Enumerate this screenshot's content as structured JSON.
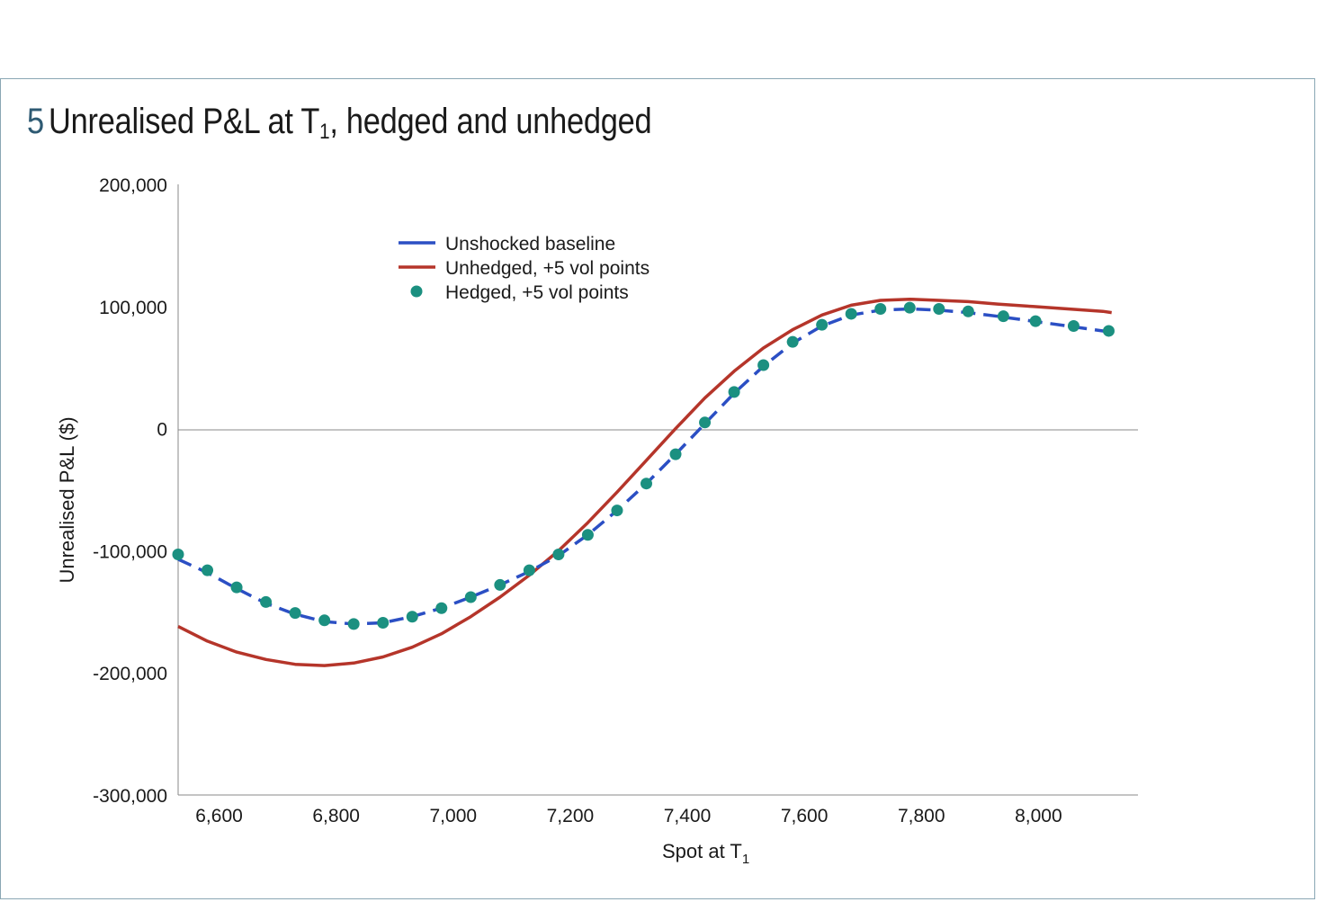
{
  "figure": {
    "number": "5",
    "title_main": "Unrealised P&L at T",
    "title_sub": "1",
    "title_rest": ", hedged and unhedged"
  },
  "chart_data": {
    "type": "line",
    "xlabel": "Spot at T",
    "xlabel_sub": "1",
    "ylabel": "Unrealised P&L ($)",
    "xlim": [
      6530,
      8170
    ],
    "ylim": [
      -300000,
      200000
    ],
    "x_ticks": [
      6600,
      6800,
      7000,
      7200,
      7400,
      7600,
      7800,
      8000
    ],
    "x_tick_labels": [
      "6,600",
      "6,800",
      "7,000",
      "7,200",
      "7,400",
      "7,600",
      "7,800",
      "8,000"
    ],
    "y_ticks": [
      200000,
      100000,
      0,
      -100000,
      -200000,
      -300000
    ],
    "y_tick_labels": [
      "200,000",
      "100,000",
      "0",
      "-100,000",
      "-200,000",
      "-300,000"
    ],
    "grid": false,
    "legend_position": "top-left",
    "x": [
      6530,
      6580,
      6630,
      6680,
      6730,
      6780,
      6830,
      6880,
      6930,
      6980,
      7030,
      7080,
      7130,
      7180,
      7230,
      7280,
      7330,
      7380,
      7430,
      7480,
      7530,
      7580,
      7630,
      7680,
      7730,
      7780,
      7830,
      7880,
      7930,
      7990,
      8050,
      8110,
      8125
    ],
    "series": [
      {
        "name": "Unshocked baseline",
        "style": "dashed-line",
        "color": "#2b4fc4",
        "values": [
          -107000,
          -118000,
          -131000,
          -143000,
          -152000,
          -158000,
          -160000,
          -159000,
          -154000,
          -147000,
          -138000,
          -128000,
          -117000,
          -104000,
          -87000,
          -67000,
          -45000,
          -21000,
          4000,
          29000,
          51000,
          70000,
          84000,
          93000,
          97000,
          98000,
          97000,
          95000,
          92000,
          88000,
          84000,
          80000,
          79000
        ]
      },
      {
        "name": "Unhedged, +5 vol points",
        "style": "solid-line",
        "color": "#b5352a",
        "values": [
          -162000,
          -174000,
          -183000,
          -189000,
          -193000,
          -194000,
          -192000,
          -187000,
          -179000,
          -168000,
          -154000,
          -138000,
          -120000,
          -100000,
          -77000,
          -52000,
          -26000,
          0,
          25000,
          47000,
          66000,
          81000,
          93000,
          101000,
          105000,
          106000,
          105000,
          104000,
          102000,
          100000,
          98000,
          96000,
          95000
        ]
      },
      {
        "name": "Hedged, +5 vol points",
        "style": "markers",
        "color": "#1b9080",
        "x": [
          6530,
          6580,
          6630,
          6680,
          6730,
          6780,
          6830,
          6880,
          6930,
          6980,
          7030,
          7080,
          7130,
          7180,
          7230,
          7280,
          7330,
          7380,
          7430,
          7480,
          7530,
          7580,
          7630,
          7680,
          7730,
          7780,
          7830,
          7880,
          7940,
          7995,
          8060,
          8120
        ],
        "values": [
          -103000,
          -116000,
          -130000,
          -142000,
          -151000,
          -157000,
          -160000,
          -159000,
          -154000,
          -147000,
          -138000,
          -128000,
          -116000,
          -103000,
          -87000,
          -67000,
          -45000,
          -21000,
          5000,
          30000,
          52000,
          71000,
          85000,
          94000,
          98000,
          99000,
          98000,
          96000,
          92000,
          88000,
          84000,
          80000
        ]
      }
    ]
  }
}
